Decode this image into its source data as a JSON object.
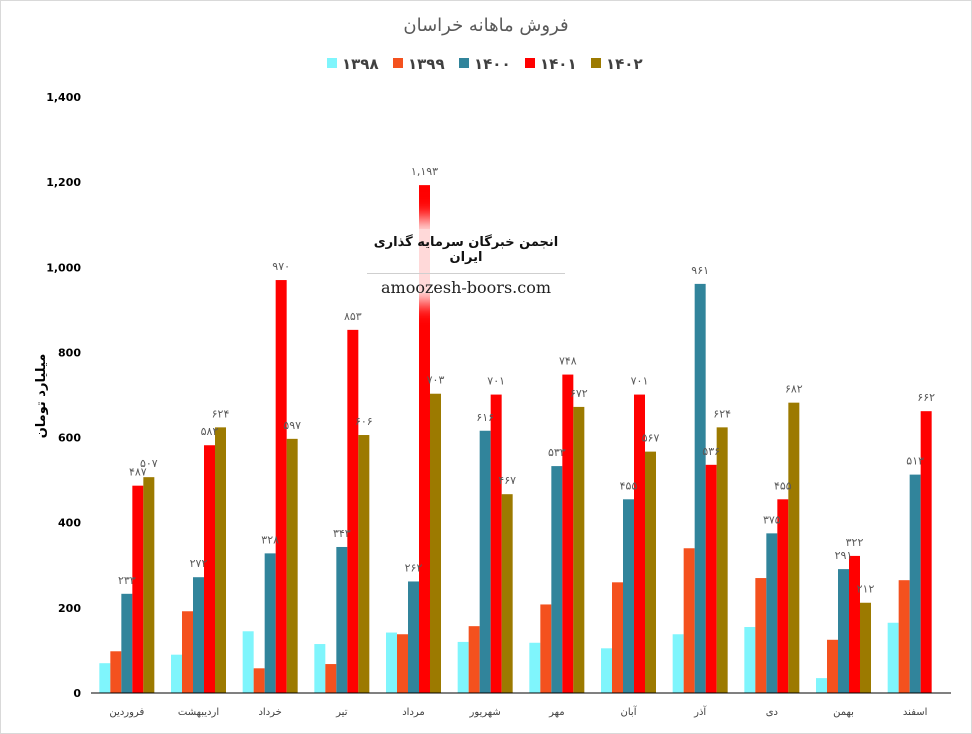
{
  "chart_data": {
    "type": "bar",
    "title": "فروش ماهانه خراسان",
    "ylabel": "میلیارد تومان",
    "ylim": [
      0,
      1400
    ],
    "yticks": [
      0,
      200,
      400,
      600,
      800,
      1000,
      1200,
      1400
    ],
    "ytick_labels": [
      "0",
      "200",
      "400",
      "600",
      "800",
      "1,000",
      "1,200",
      "1,400"
    ],
    "grid": false,
    "legend_position": "top",
    "categories": [
      "فروردین",
      "اردیبهشت",
      "خرداد",
      "تیر",
      "مرداد",
      "شهریور",
      "مهر",
      "آبان",
      "آذر",
      "دی",
      "بهمن",
      "اسفند"
    ],
    "series": [
      {
        "name": "1398",
        "label": "۱۳۹۸",
        "color": "#7ff5fc",
        "values": [
          70,
          90,
          145,
          115,
          142,
          120,
          118,
          105,
          138,
          155,
          35,
          165
        ],
        "labels": []
      },
      {
        "name": "1399",
        "label": "۱۳۹۹",
        "color": "#f4511e",
        "values": [
          98,
          192,
          58,
          68,
          138,
          157,
          208,
          260,
          340,
          270,
          125,
          265
        ],
        "labels": []
      },
      {
        "name": "1400",
        "label": "۱۴۰۰",
        "color": "#31849b",
        "values": [
          233,
          272,
          328,
          343,
          262,
          616,
          533,
          455,
          961,
          375,
          291,
          513
        ],
        "labels": [
          "۲۳۳",
          "۲۷۲",
          "۳۲۸",
          "۳۴۳",
          "۲۶۲",
          "۶۱۶",
          "۵۳۳",
          "۴۵۵",
          "۹۶۱",
          "۳۷۵",
          "۲۹۱",
          "۵۱۳"
        ]
      },
      {
        "name": "1401",
        "label": "۱۴۰۱",
        "color": "#ff0000",
        "values": [
          487,
          582,
          970,
          853,
          1193,
          701,
          748,
          701,
          536,
          455,
          322,
          662
        ],
        "labels": [
          "۴۸۷",
          "۵۸۲",
          "۹۷۰",
          "۸۵۳",
          "۱,۱۹۳",
          "۷۰۱",
          "۷۴۸",
          "۷۰۱",
          "۵۳۶",
          "۴۵۵",
          "۳۲۲",
          "۶۶۲"
        ]
      },
      {
        "name": "1402",
        "label": "۱۴۰۲",
        "color": "#9c7a00",
        "values": [
          507,
          624,
          597,
          606,
          703,
          467,
          672,
          567,
          624,
          682,
          212,
          null
        ],
        "labels": [
          "۵۰۷",
          "۶۲۴",
          "۵۹۷",
          "۶۰۶",
          "۷۰۳",
          "۴۶۷",
          "۶۷۲",
          "۵۶۷",
          "۶۲۴",
          "۶۸۲",
          "۲۱۲",
          ""
        ]
      }
    ]
  },
  "watermark": {
    "line1": "انجمن خبرگان سرمایه گذاری ایران",
    "line2": "amoozesh-boors.com"
  }
}
